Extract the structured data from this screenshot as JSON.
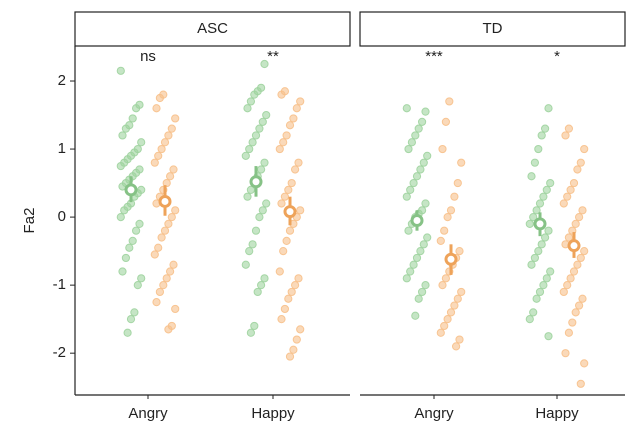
{
  "chart_data": [
    {
      "type": "strip",
      "facet": "ASC",
      "ylabel": "Fa2",
      "categories": [
        "Angry",
        "Happy"
      ],
      "significance": [
        "ns",
        "**"
      ],
      "ylim": [
        -2.6,
        2.5
      ],
      "yticks": [
        -2,
        -1,
        0,
        1,
        2
      ],
      "series": [
        {
          "color": "#9fd39f",
          "mean_color": "#86c286",
          "points": [
            [
              2.15,
              1.65,
              1.6,
              1.45,
              1.35,
              1.3,
              1.2,
              1.1,
              1.0,
              0.95,
              0.9,
              0.85,
              0.8,
              0.75,
              0.7,
              0.65,
              0.6,
              0.55,
              0.5,
              0.45,
              0.4,
              0.35,
              0.3,
              0.2,
              0.15,
              0.1,
              0.0,
              -0.1,
              -0.2,
              -0.35,
              -0.45,
              -0.6,
              -0.8,
              -0.9,
              -1.0,
              -1.4,
              -1.5,
              -1.7
            ],
            [
              2.25,
              1.9,
              1.85,
              1.8,
              1.7,
              1.6,
              1.5,
              1.4,
              1.3,
              1.2,
              1.1,
              1.0,
              0.9,
              0.8,
              0.7,
              0.6,
              0.5,
              0.4,
              0.3,
              0.2,
              0.1,
              0.0,
              -0.2,
              -0.4,
              -0.5,
              -0.7,
              -0.9,
              -1.0,
              -1.1,
              -1.6,
              -1.7
            ]
          ],
          "means": [
            0.4,
            0.52
          ],
          "ci_low": [
            0.22,
            0.3
          ],
          "ci_high": [
            0.6,
            0.75
          ]
        },
        {
          "color": "#f7c08a",
          "mean_color": "#eea35a",
          "points": [
            [
              1.8,
              1.75,
              1.6,
              1.45,
              1.3,
              1.2,
              1.1,
              1.0,
              0.9,
              0.8,
              0.7,
              0.6,
              0.5,
              0.4,
              0.3,
              0.2,
              0.1,
              0.0,
              -0.1,
              -0.2,
              -0.3,
              -0.45,
              -0.55,
              -0.7,
              -0.8,
              -0.9,
              -1.0,
              -1.1,
              -1.25,
              -1.35,
              -1.6,
              -1.65
            ],
            [
              1.85,
              1.8,
              1.7,
              1.6,
              1.45,
              1.35,
              1.2,
              1.1,
              1.0,
              0.8,
              0.7,
              0.5,
              0.4,
              0.3,
              0.2,
              0.1,
              0.0,
              -0.1,
              -0.2,
              -0.35,
              -0.5,
              -0.8,
              -0.9,
              -1.0,
              -1.1,
              -1.2,
              -1.35,
              -1.5,
              -1.65,
              -1.8,
              -1.95,
              -2.05
            ]
          ],
          "means": [
            0.23,
            0.08
          ],
          "ci_low": [
            0.02,
            -0.12
          ],
          "ci_high": [
            0.47,
            0.3
          ]
        }
      ]
    },
    {
      "type": "strip",
      "facet": "TD",
      "categories": [
        "Angry",
        "Happy"
      ],
      "significance": [
        "***",
        "*"
      ],
      "ylim": [
        -2.6,
        2.5
      ],
      "series": [
        {
          "color": "#9fd39f",
          "mean_color": "#86c286",
          "points": [
            [
              1.6,
              1.55,
              1.4,
              1.3,
              1.2,
              1.1,
              1.0,
              0.9,
              0.8,
              0.7,
              0.6,
              0.5,
              0.4,
              0.3,
              0.2,
              0.1,
              0.05,
              0.0,
              -0.1,
              -0.2,
              -0.3,
              -0.4,
              -0.5,
              -0.6,
              -0.7,
              -0.8,
              -0.9,
              -1.0,
              -1.1,
              -1.2,
              -1.45
            ],
            [
              1.6,
              1.3,
              1.2,
              1.0,
              0.8,
              0.6,
              0.5,
              0.4,
              0.3,
              0.2,
              0.1,
              0.0,
              -0.1,
              -0.2,
              -0.3,
              -0.4,
              -0.5,
              -0.6,
              -0.7,
              -0.8,
              -0.9,
              -1.0,
              -1.1,
              -1.2,
              -1.4,
              -1.5,
              -1.75
            ]
          ],
          "means": [
            -0.05,
            -0.1
          ],
          "ci_low": [
            -0.2,
            -0.28
          ],
          "ci_high": [
            0.1,
            0.07
          ]
        },
        {
          "color": "#f7c08a",
          "mean_color": "#eea35a",
          "points": [
            [
              1.7,
              1.4,
              1.0,
              0.8,
              0.5,
              0.3,
              0.1,
              0.0,
              -0.2,
              -0.35,
              -0.5,
              -0.6,
              -0.7,
              -0.8,
              -0.9,
              -1.0,
              -1.1,
              -1.2,
              -1.3,
              -1.4,
              -1.5,
              -1.6,
              -1.7,
              -1.8,
              -1.9
            ],
            [
              1.3,
              1.2,
              1.0,
              0.8,
              0.7,
              0.5,
              0.4,
              0.3,
              0.2,
              0.1,
              0.0,
              -0.1,
              -0.2,
              -0.3,
              -0.4,
              -0.5,
              -0.6,
              -0.7,
              -0.8,
              -0.9,
              -1.0,
              -1.1,
              -1.2,
              -1.3,
              -1.4,
              -1.55,
              -1.7,
              -2.0,
              -2.15,
              -2.45
            ]
          ],
          "means": [
            -0.62,
            -0.42
          ],
          "ci_low": [
            -0.85,
            -0.6
          ],
          "ci_high": [
            -0.4,
            -0.22
          ]
        }
      ]
    }
  ]
}
